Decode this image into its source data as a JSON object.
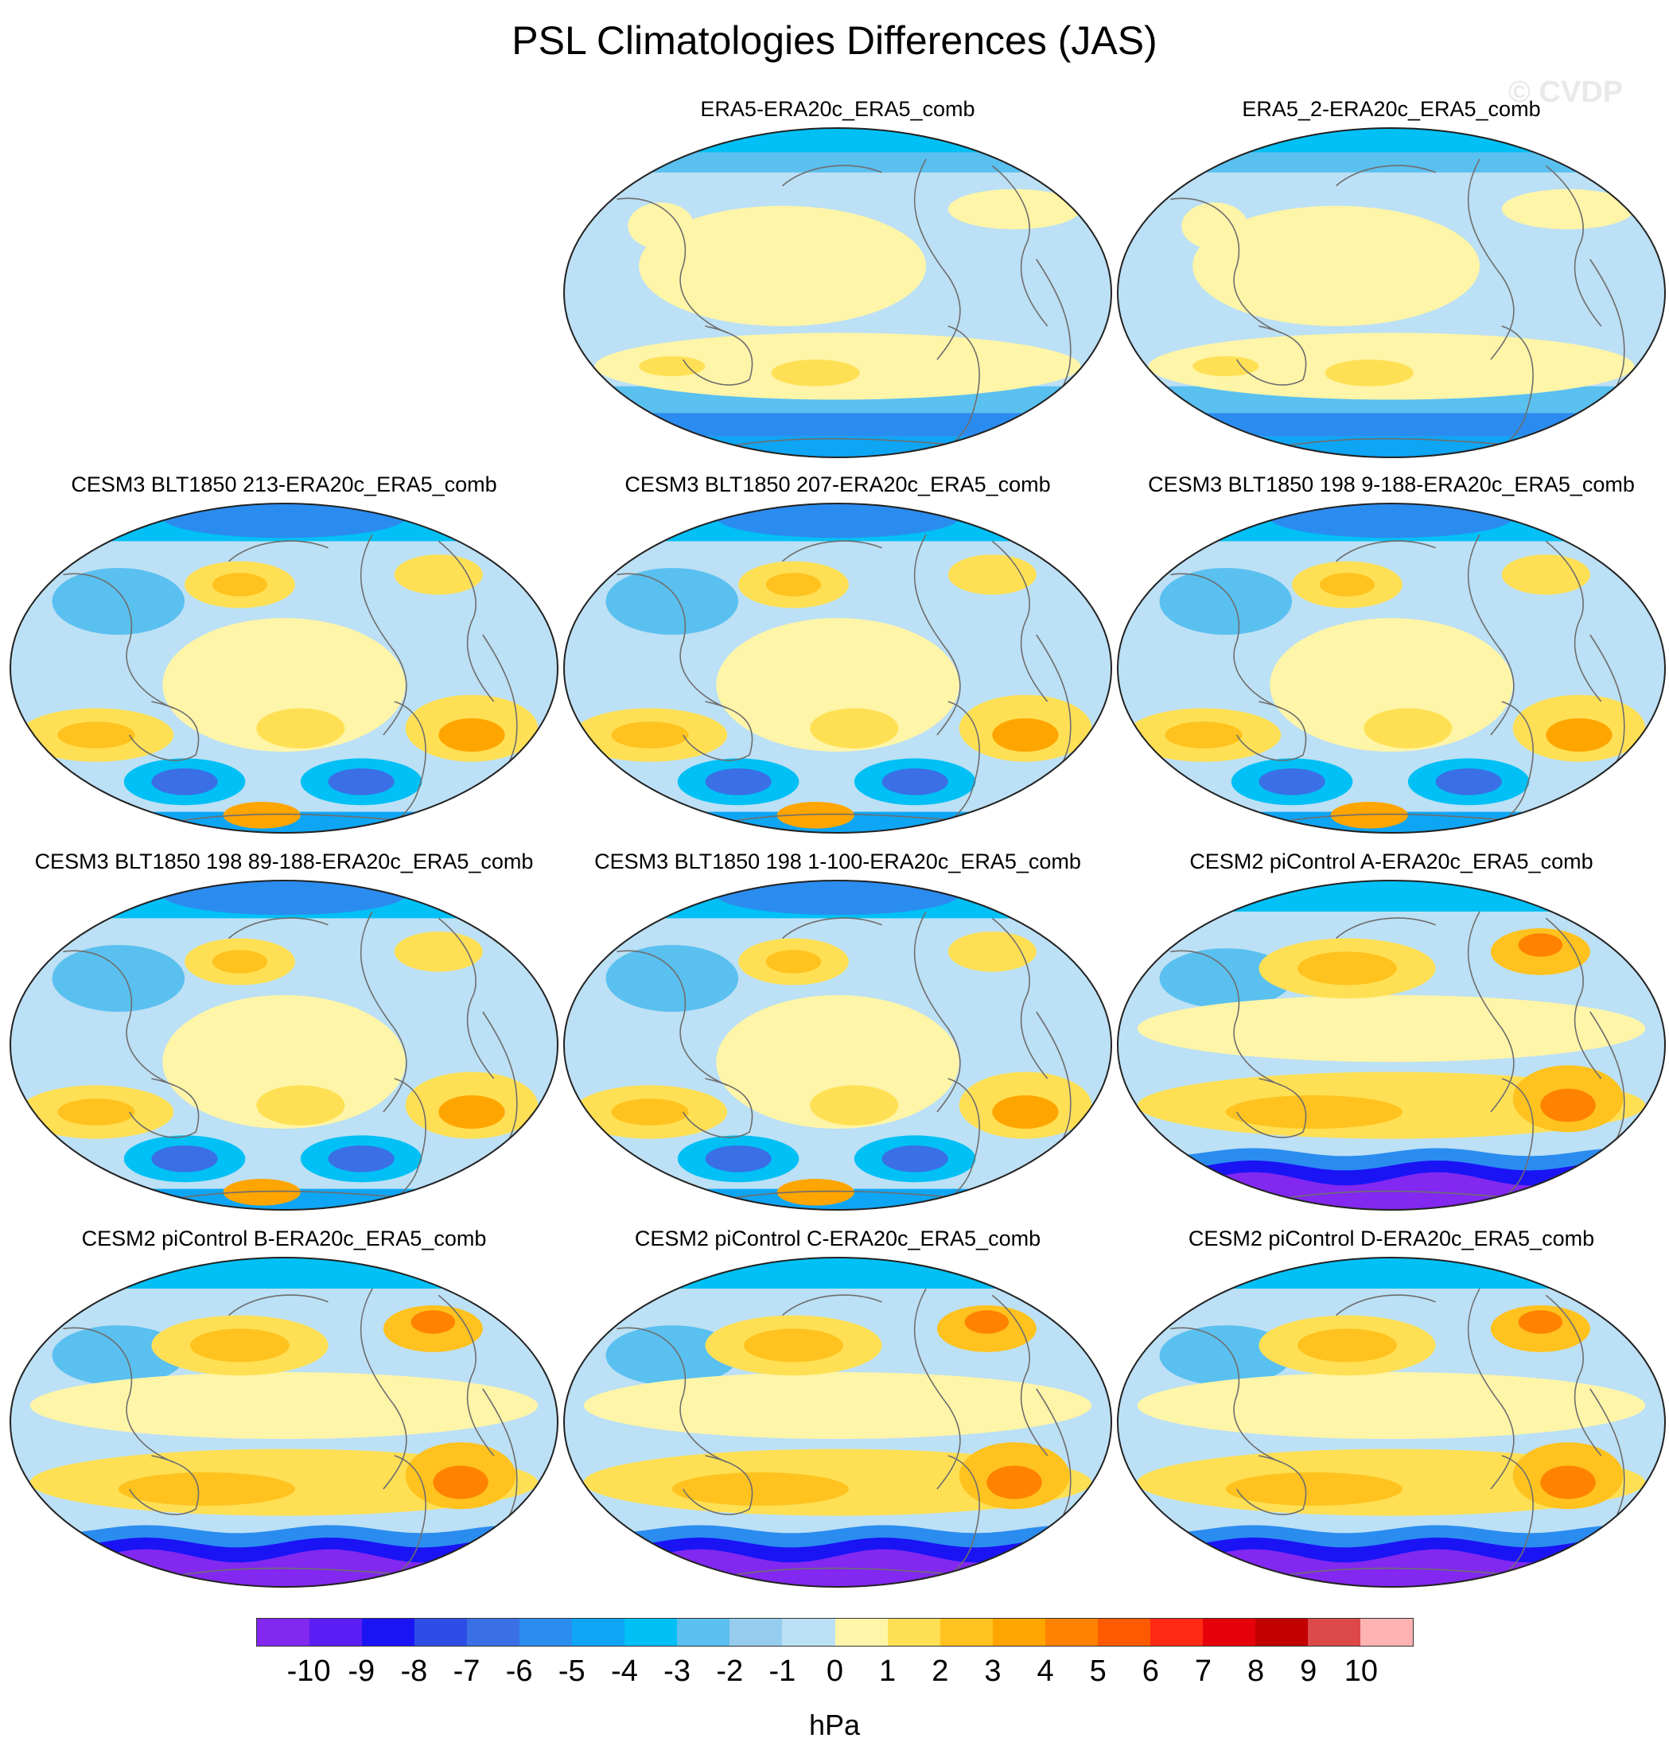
{
  "chart_data": {
    "type": "heatmap",
    "title": "PSL Climatologies Differences (JAS)",
    "watermark": "© CVDP",
    "units": "hPa",
    "projection": "Robinson (world, Pacific-centered)",
    "colorbar": {
      "min": -10,
      "max": 10,
      "labels": [
        "-10",
        "-9",
        "-8",
        "-7",
        "-6",
        "-5",
        "-4",
        "-3",
        "-2",
        "-1",
        "0",
        "1",
        "2",
        "3",
        "4",
        "5",
        "6",
        "7",
        "8",
        "9",
        "10"
      ],
      "colors": [
        "#8228f0",
        "#5a1ef5",
        "#1a14f5",
        "#2d4ee6",
        "#3a6fe6",
        "#2b8cf0",
        "#0ea5f5",
        "#00c0f5",
        "#5ac0f0",
        "#96cdee",
        "#bce0f5",
        "#fff5a8",
        "#ffe055",
        "#ffc21e",
        "#ffa500",
        "#ff8200",
        "#ff5a00",
        "#ff2a14",
        "#e6000a",
        "#c30000",
        "#dd4848",
        "#ffb2b2"
      ]
    },
    "panels": [
      {
        "title": "ERA5-ERA20c_ERA5_comb",
        "style": "obs"
      },
      {
        "title": "ERA5_2-ERA20c_ERA5_comb",
        "style": "obs"
      },
      {
        "title": "CESM3 BLT1850 213-ERA20c_ERA5_comb",
        "style": "cesm3"
      },
      {
        "title": "CESM3 BLT1850 207-ERA20c_ERA5_comb",
        "style": "cesm3"
      },
      {
        "title": "CESM3 BLT1850 198 9-188-ERA20c_ERA5_comb",
        "style": "cesm3"
      },
      {
        "title": "CESM3 BLT1850 198 89-188-ERA20c_ERA5_comb",
        "style": "cesm3"
      },
      {
        "title": "CESM3 BLT1850 198 1-100-ERA20c_ERA5_comb",
        "style": "cesm3"
      },
      {
        "title": "CESM2 piControl A-ERA20c_ERA5_comb",
        "style": "cesm2"
      },
      {
        "title": "CESM2 piControl B-ERA20c_ERA5_comb",
        "style": "cesm2"
      },
      {
        "title": "CESM2 piControl C-ERA20c_ERA5_comb",
        "style": "cesm2"
      },
      {
        "title": "CESM2 piControl D-ERA20c_ERA5_comb",
        "style": "cesm2"
      }
    ]
  }
}
